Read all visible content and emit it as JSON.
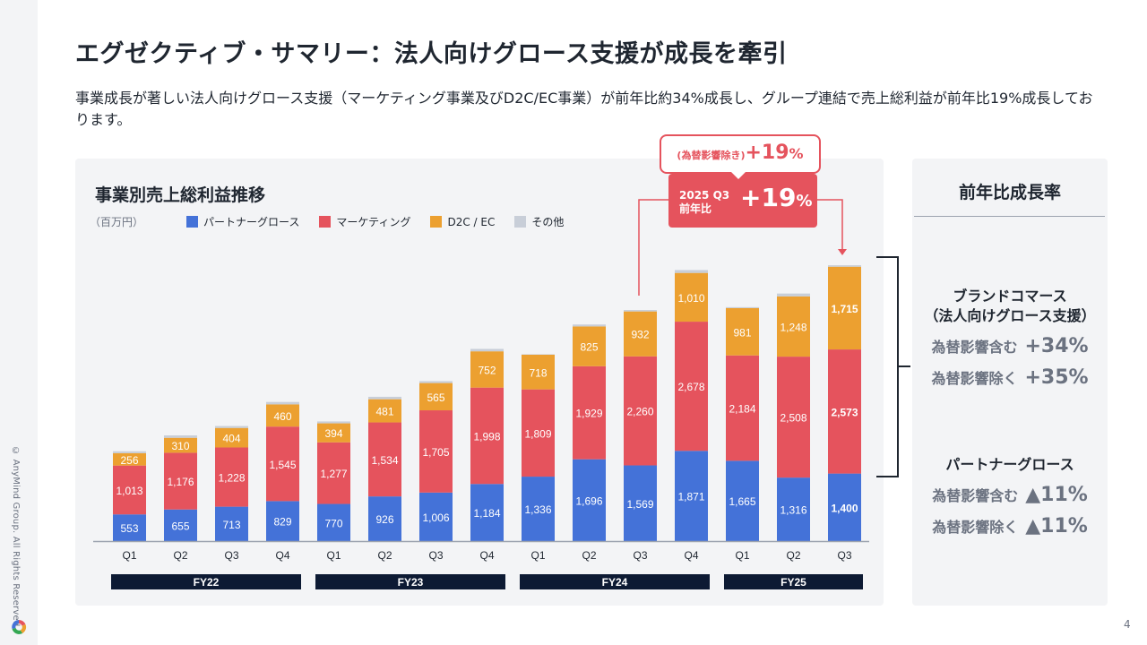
{
  "slide": {
    "title": "エグゼクティブ・サマリー：法人向けグロース支援が成長を牽引",
    "subtitle": "事業成長が著しい法人向けグロース支援（マーケティング事業及びD2C/EC事業）が前年比約34%成長し、グループ連結で売上総利益が前年比19%成長しております。",
    "copyright": "© AnyMind Group. All Rights Reserved.",
    "page_number": "4",
    "logo_icon": "anymind-logo-icon"
  },
  "callout": {
    "top_label": "(為替影響除き)",
    "top_value": "+19",
    "top_pct": "%",
    "main_label_line1": "2025 Q3",
    "main_label_line2": "前年比",
    "main_value": "+19",
    "main_pct": "%"
  },
  "right_panel": {
    "title": "前年比成長率",
    "brand_commerce": {
      "heading_line1": "ブランドコマース",
      "heading_line2": "（法人向けグロース支援）",
      "rows": [
        {
          "label": "為替影響含む",
          "value": "+34%"
        },
        {
          "label": "為替影響除く",
          "value": "+35%"
        }
      ]
    },
    "partner_growth": {
      "heading": "パートナーグロース",
      "rows": [
        {
          "label": "為替影響含む",
          "value": "▲11%"
        },
        {
          "label": "為替影響除く",
          "value": "▲11%"
        }
      ]
    }
  },
  "chart_data": {
    "type": "bar",
    "stacked": true,
    "title": "事業別売上総利益推移",
    "unit_label": "（百万円）",
    "xlabel": "",
    "ylabel": "",
    "categories": [
      "Q1",
      "Q2",
      "Q3",
      "Q4",
      "Q1",
      "Q2",
      "Q3",
      "Q4",
      "Q1",
      "Q2",
      "Q3",
      "Q4",
      "Q1",
      "Q2",
      "Q3"
    ],
    "fiscal_years": [
      {
        "label": "FY22",
        "start": 0,
        "end": 3
      },
      {
        "label": "FY23",
        "start": 4,
        "end": 7
      },
      {
        "label": "FY24",
        "start": 8,
        "end": 11
      },
      {
        "label": "FY25",
        "start": 12,
        "end": 14
      }
    ],
    "series": [
      {
        "name": "パートナーグロース",
        "color": "#4472d8",
        "values": [
          553,
          655,
          713,
          829,
          770,
          926,
          1006,
          1184,
          1336,
          1696,
          1569,
          1871,
          1665,
          1316,
          1400
        ]
      },
      {
        "name": "マーケティング",
        "color": "#e5535d",
        "values": [
          1013,
          1176,
          1228,
          1545,
          1277,
          1534,
          1705,
          1998,
          1809,
          1929,
          2260,
          2678,
          2184,
          2508,
          2573
        ]
      },
      {
        "name": "D2C / EC",
        "color": "#eca030",
        "values": [
          256,
          310,
          404,
          460,
          394,
          481,
          565,
          752,
          718,
          825,
          932,
          1010,
          981,
          1248,
          1715
        ]
      },
      {
        "name": "その他",
        "color": "#c8ced8",
        "values": [
          40,
          50,
          40,
          50,
          40,
          50,
          40,
          50,
          10,
          40,
          30,
          60,
          20,
          60,
          30
        ]
      }
    ],
    "bold_labels_index": 14,
    "ylim": [
      0,
      6000
    ],
    "grid": false,
    "legend_position": "top-left"
  }
}
